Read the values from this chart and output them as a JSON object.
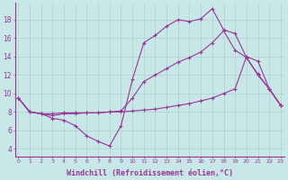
{
  "background_color": "#c8e8e8",
  "plot_bg_color": "#c8e8e8",
  "line_color": "#993399",
  "marker": "+",
  "markersize": 3,
  "linewidth": 0.8,
  "xlabel": "Windchill (Refroidissement éolien,°C)",
  "xlabel_fontsize": 6.0,
  "ytick_labels": [
    "4",
    "6",
    "8",
    "10",
    "12",
    "14",
    "16",
    "18"
  ],
  "ytick_vals": [
    4,
    6,
    8,
    10,
    12,
    14,
    16,
    18
  ],
  "xticks": [
    0,
    1,
    2,
    3,
    4,
    5,
    6,
    7,
    8,
    9,
    10,
    11,
    12,
    13,
    14,
    15,
    16,
    17,
    18,
    19,
    20,
    21,
    22,
    23
  ],
  "xlim": [
    -0.3,
    23.3
  ],
  "ylim": [
    3.2,
    19.8
  ],
  "grid_color": "#b0d0d0",
  "series": [
    {
      "x": [
        0,
        1,
        2,
        3,
        4,
        5,
        6,
        7,
        8,
        9,
        10,
        11,
        12,
        13,
        14,
        15,
        16,
        17,
        18,
        19,
        20,
        21,
        22,
        23
      ],
      "y": [
        9.5,
        8.0,
        7.8,
        7.3,
        7.1,
        6.5,
        5.4,
        4.8,
        4.3,
        6.5,
        11.5,
        15.5,
        16.3,
        17.3,
        18.0,
        17.8,
        18.1,
        19.2,
        16.9,
        16.5,
        13.9,
        12.0,
        10.5,
        8.7
      ]
    },
    {
      "x": [
        0,
        1,
        2,
        3,
        4,
        5,
        6,
        7,
        8,
        9,
        10,
        11,
        12,
        13,
        14,
        15,
        16,
        17,
        18,
        19,
        20,
        21,
        22,
        23
      ],
      "y": [
        9.5,
        8.0,
        7.8,
        7.6,
        7.8,
        7.8,
        7.9,
        7.9,
        8.0,
        8.1,
        9.5,
        11.3,
        12.0,
        12.7,
        13.4,
        13.9,
        14.5,
        15.5,
        16.8,
        14.7,
        13.9,
        12.1,
        10.5,
        8.7
      ]
    },
    {
      "x": [
        0,
        1,
        2,
        3,
        4,
        5,
        6,
        7,
        8,
        9,
        10,
        11,
        12,
        13,
        14,
        15,
        16,
        17,
        18,
        19,
        20,
        21,
        22,
        23
      ],
      "y": [
        9.5,
        8.0,
        7.8,
        7.8,
        7.9,
        7.9,
        7.9,
        7.9,
        8.0,
        8.0,
        8.1,
        8.2,
        8.3,
        8.5,
        8.7,
        8.9,
        9.2,
        9.5,
        10.0,
        10.5,
        14.0,
        13.5,
        10.5,
        8.7
      ]
    }
  ]
}
